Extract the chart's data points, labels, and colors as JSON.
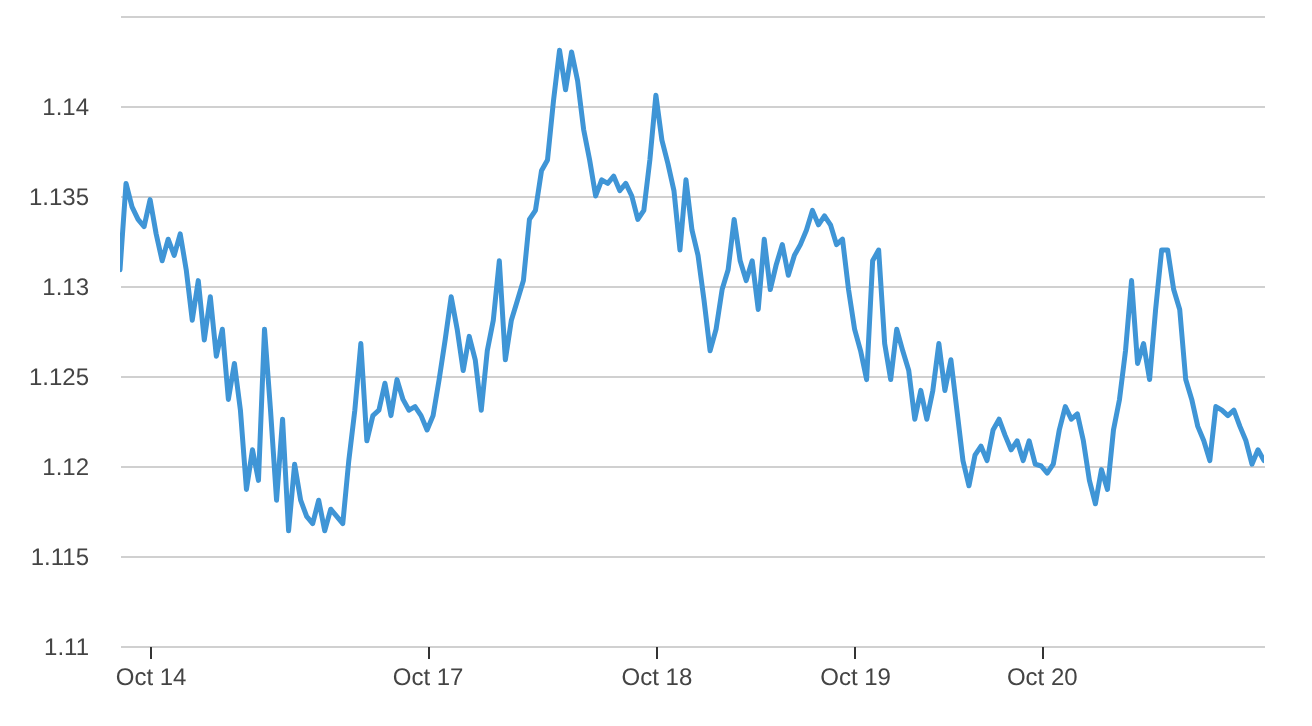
{
  "chart_data": {
    "type": "line",
    "categories": [
      null,
      null,
      null,
      null,
      null,
      "Oct 14",
      null,
      null,
      null,
      null,
      null,
      null,
      null,
      null,
      null,
      null,
      null,
      null,
      null,
      null,
      null,
      null,
      null,
      null,
      null,
      null,
      null,
      null,
      null,
      null,
      null,
      null,
      null,
      null,
      null,
      null,
      null,
      null,
      null,
      null,
      null,
      null,
      null,
      null,
      null,
      null,
      null,
      null,
      null,
      null,
      null,
      "Oct 17",
      null,
      null,
      null,
      null,
      null,
      null,
      null,
      null,
      null,
      null,
      null,
      null,
      null,
      null,
      null,
      null,
      null,
      null,
      null,
      null,
      null,
      null,
      null,
      null,
      null,
      null,
      null,
      null,
      null,
      null,
      null,
      null,
      null,
      null,
      null,
      null,
      null,
      "Oct 18",
      null,
      null,
      null,
      null,
      null,
      null,
      null,
      null,
      null,
      null,
      null,
      null,
      null,
      null,
      null,
      null,
      null,
      null,
      null,
      null,
      null,
      null,
      null,
      null,
      null,
      null,
      null,
      null,
      null,
      null,
      null,
      null,
      "Oct 19",
      null,
      null,
      null,
      null,
      null,
      null,
      null,
      null,
      null,
      null,
      null,
      null,
      null,
      null,
      null,
      null,
      null,
      null,
      null,
      null,
      null,
      null,
      null,
      null,
      null,
      null,
      null,
      null,
      null,
      null,
      "Oct 20",
      null,
      null,
      null,
      null,
      null,
      null,
      null,
      null,
      null,
      null,
      null,
      null,
      null,
      null,
      null,
      null,
      null,
      null,
      null,
      null,
      null,
      null,
      null,
      null,
      null,
      null,
      null,
      null,
      null,
      null,
      null,
      null,
      null,
      null,
      null,
      null,
      null
    ],
    "series": [
      {
        "color": "#3f95d6",
        "values": [
          1.1309,
          1.1357,
          1.1344,
          1.1337,
          1.1333,
          1.1348,
          1.1329,
          1.1314,
          1.1326,
          1.1317,
          1.1329,
          1.1309,
          1.1281,
          1.1303,
          1.127,
          1.1294,
          1.1261,
          1.1276,
          1.1237,
          1.1257,
          1.1231,
          1.1187,
          1.1209,
          1.1192,
          1.1276,
          1.1231,
          1.1181,
          1.1226,
          1.1164,
          1.1201,
          1.1181,
          1.1172,
          1.1168,
          1.1181,
          1.1164,
          1.1176,
          1.1172,
          1.1168,
          1.1203,
          1.1231,
          1.1268,
          1.1214,
          1.1228,
          1.1231,
          1.1246,
          1.1228,
          1.1248,
          1.1237,
          1.1231,
          1.1233,
          1.1228,
          1.122,
          1.1228,
          1.1248,
          1.127,
          1.1294,
          1.1276,
          1.1253,
          1.1272,
          1.1259,
          1.1231,
          1.1264,
          1.1281,
          1.1314,
          1.1259,
          1.1281,
          1.1292,
          1.1303,
          1.1337,
          1.1342,
          1.1364,
          1.137,
          1.1403,
          1.1431,
          1.1409,
          1.143,
          1.1414,
          1.1387,
          1.137,
          1.135,
          1.1359,
          1.1357,
          1.1361,
          1.1353,
          1.1357,
          1.135,
          1.1337,
          1.1342,
          1.137,
          1.1406,
          1.1381,
          1.1368,
          1.1353,
          1.132,
          1.1359,
          1.1331,
          1.1317,
          1.1292,
          1.1264,
          1.1276,
          1.1298,
          1.1309,
          1.1337,
          1.1314,
          1.1303,
          1.1314,
          1.1287,
          1.1326,
          1.1298,
          1.1312,
          1.1323,
          1.1306,
          1.1317,
          1.1323,
          1.1331,
          1.1342,
          1.1334,
          1.1339,
          1.1334,
          1.1323,
          1.1326,
          1.1298,
          1.1276,
          1.1264,
          1.1248,
          1.1314,
          1.132,
          1.1268,
          1.1248,
          1.1276,
          1.1264,
          1.1253,
          1.1226,
          1.1242,
          1.1226,
          1.1242,
          1.1268,
          1.1242,
          1.1259,
          1.1231,
          1.1203,
          1.1189,
          1.1206,
          1.1211,
          1.1203,
          1.122,
          1.1226,
          1.1217,
          1.1209,
          1.1214,
          1.1203,
          1.1214,
          1.1201,
          1.12,
          1.1196,
          1.1201,
          1.122,
          1.1233,
          1.1226,
          1.1229,
          1.1214,
          1.1192,
          1.1179,
          1.1198,
          1.1187,
          1.122,
          1.1237,
          1.1264,
          1.1303,
          1.1257,
          1.1268,
          1.1248,
          1.1287,
          1.132,
          1.132,
          1.1298,
          1.1287,
          1.1248,
          1.1237,
          1.1222,
          1.1214,
          1.1203,
          1.1233,
          1.1231,
          1.1228,
          1.1231,
          1.1222,
          1.1214,
          1.1201,
          1.1209,
          1.1203
        ]
      }
    ],
    "ylim": [
      1.11,
      1.145
    ],
    "yticks": [
      1.11,
      1.115,
      1.12,
      1.125,
      1.13,
      1.135,
      1.14,
      {
        "value": 1.145,
        "label": null
      }
    ],
    "grid": "y",
    "marker": "none",
    "line_style": "solid"
  }
}
